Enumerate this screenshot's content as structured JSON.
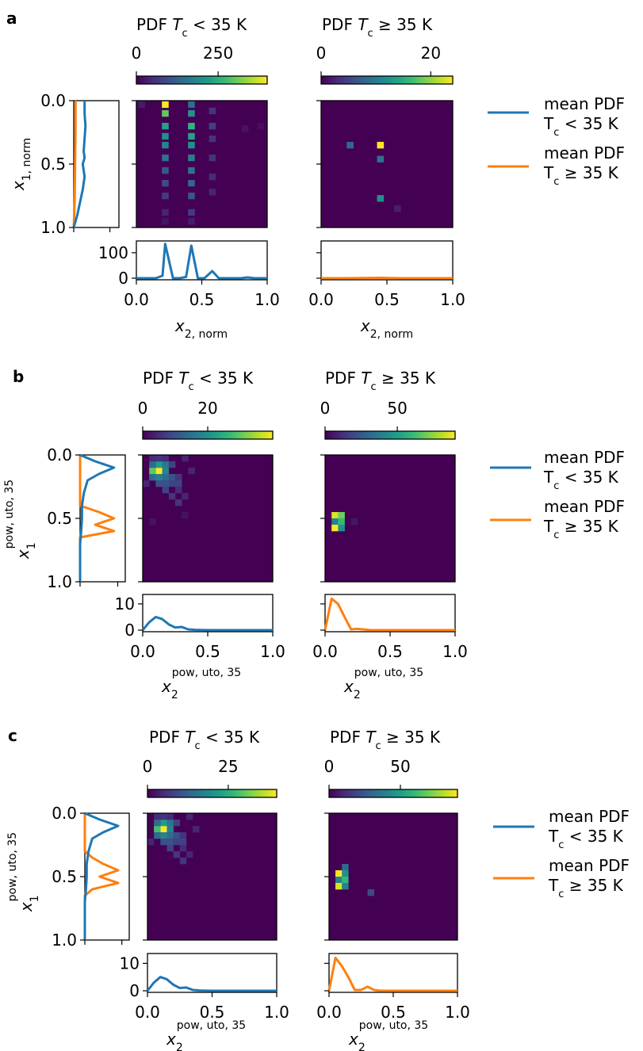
{
  "colors": {
    "below": "#1f77b4",
    "above": "#ff7f0e",
    "viridis": [
      "#440154",
      "#482878",
      "#3e4989",
      "#31688e",
      "#26828e",
      "#1f9e89",
      "#35b779",
      "#6ece58",
      "#b5de2b",
      "#fde725"
    ]
  },
  "legend": {
    "below": [
      "mean PDF",
      "T_c < 35 K"
    ],
    "above": [
      "mean PDF",
      "T_c ≥ 35 K"
    ]
  },
  "chart_data": [
    {
      "panel": "a",
      "type": "heatmap",
      "titles": [
        "PDF Tc < 35 K",
        "PDF Tc ≥ 35 K"
      ],
      "xlabel": "x_2,norm",
      "ylabel": "x_1,norm",
      "x_ticks": [
        "0.0",
        "0.5",
        "1.0"
      ],
      "y_ticks": [
        "0.0",
        "0.5",
        "1.0"
      ],
      "colorbars": [
        {
          "range": [
            0,
            400
          ],
          "ticks": [
            0,
            250
          ],
          "tick_labels": [
            "0",
            "250"
          ]
        },
        {
          "range": [
            0,
            24
          ],
          "ticks": [
            0,
            20
          ],
          "tick_labels": [
            "0",
            "20"
          ]
        }
      ],
      "cells_below": [
        [
          0.04,
          0.03,
          30
        ],
        [
          0.22,
          0.03,
          400
        ],
        [
          0.22,
          0.1,
          300
        ],
        [
          0.22,
          0.2,
          230
        ],
        [
          0.22,
          0.28,
          200
        ],
        [
          0.22,
          0.35,
          180
        ],
        [
          0.22,
          0.45,
          150
        ],
        [
          0.22,
          0.55,
          110
        ],
        [
          0.22,
          0.65,
          90
        ],
        [
          0.22,
          0.75,
          70
        ],
        [
          0.22,
          0.88,
          40
        ],
        [
          0.42,
          0.03,
          140
        ],
        [
          0.42,
          0.1,
          200
        ],
        [
          0.42,
          0.2,
          260
        ],
        [
          0.42,
          0.28,
          230
        ],
        [
          0.42,
          0.35,
          200
        ],
        [
          0.42,
          0.45,
          170
        ],
        [
          0.42,
          0.55,
          150
        ],
        [
          0.42,
          0.65,
          130
        ],
        [
          0.42,
          0.75,
          110
        ],
        [
          0.42,
          0.88,
          70
        ],
        [
          0.58,
          0.08,
          60
        ],
        [
          0.58,
          0.2,
          80
        ],
        [
          0.58,
          0.3,
          60
        ],
        [
          0.58,
          0.45,
          60
        ],
        [
          0.58,
          0.6,
          50
        ],
        [
          0.58,
          0.72,
          40
        ],
        [
          0.83,
          0.22,
          20
        ],
        [
          0.95,
          0.2,
          15
        ],
        [
          0.22,
          0.95,
          20
        ],
        [
          0.42,
          0.95,
          30
        ]
      ],
      "cells_above": [
        [
          0.22,
          0.35,
          8
        ],
        [
          0.45,
          0.35,
          24
        ],
        [
          0.45,
          0.46,
          9
        ],
        [
          0.45,
          0.77,
          12
        ],
        [
          0.58,
          0.85,
          2
        ]
      ],
      "marg_x_below": {
        "x": [
          0,
          0.05,
          0.1,
          0.15,
          0.2,
          0.22,
          0.28,
          0.33,
          0.38,
          0.42,
          0.47,
          0.52,
          0.58,
          0.63,
          0.7,
          0.8,
          0.85,
          0.9,
          1.0
        ],
        "y": [
          0,
          0,
          0,
          0,
          10,
          135,
          0,
          0,
          5,
          128,
          0,
          0,
          28,
          0,
          0,
          0,
          3,
          0,
          0
        ]
      },
      "marg_x_above": {
        "x": [
          0,
          0.2,
          0.45,
          0.6,
          1.0
        ],
        "y": [
          0,
          0,
          1.5,
          0,
          0
        ]
      },
      "marg_x_ylim": [
        0,
        140
      ],
      "marg_x_ticks": [
        0,
        100
      ],
      "marg_y_below": {
        "y": [
          0,
          0.05,
          0.1,
          0.2,
          0.3,
          0.4,
          0.45,
          0.5,
          0.55,
          0.6,
          0.7,
          0.8,
          0.9,
          0.95,
          1.0
        ],
        "x": [
          12,
          12,
          12,
          13,
          12,
          11,
          12,
          10,
          11,
          12,
          10,
          7,
          4,
          2,
          0
        ]
      },
      "marg_y_above": {
        "y": [
          0,
          0.2,
          0.5,
          0.8,
          1.0
        ],
        "x": [
          2,
          2,
          1.5,
          1,
          0
        ]
      },
      "marg_y_xlim": [
        0,
        50
      ],
      "marg_y_xticks": [
        0,
        40
      ]
    },
    {
      "panel": "b",
      "type": "heatmap",
      "titles": [
        "PDF Tc < 35 K",
        "PDF Tc ≥ 35 K"
      ],
      "xlabel": "x_2^pow,uto,35",
      "ylabel": "x_1^pow,uto,35",
      "x_ticks": [
        "0.0",
        "0.5",
        "1.0"
      ],
      "y_ticks": [
        "0.0",
        "0.5",
        "1.0"
      ],
      "colorbars": [
        {
          "range": [
            0,
            40
          ],
          "ticks": [
            0,
            20
          ],
          "tick_labels": [
            "0",
            "20"
          ]
        },
        {
          "range": [
            0,
            90
          ],
          "ticks": [
            0,
            50
          ],
          "tick_labels": [
            "0",
            "50"
          ]
        }
      ],
      "cells_below": [
        [
          0.125,
          0.125,
          40
        ],
        [
          0.075,
          0.125,
          30
        ],
        [
          0.175,
          0.125,
          18
        ],
        [
          0.125,
          0.075,
          22
        ],
        [
          0.175,
          0.075,
          16
        ],
        [
          0.075,
          0.075,
          14
        ],
        [
          0.225,
          0.075,
          8
        ],
        [
          0.075,
          0.175,
          14
        ],
        [
          0.125,
          0.175,
          18
        ],
        [
          0.175,
          0.175,
          14
        ],
        [
          0.225,
          0.175,
          10
        ],
        [
          0.275,
          0.175,
          6
        ],
        [
          0.125,
          0.225,
          10
        ],
        [
          0.175,
          0.225,
          10
        ],
        [
          0.225,
          0.225,
          8
        ],
        [
          0.275,
          0.225,
          8
        ],
        [
          0.175,
          0.275,
          8
        ],
        [
          0.275,
          0.275,
          5
        ],
        [
          0.225,
          0.325,
          6
        ],
        [
          0.325,
          0.325,
          4
        ],
        [
          0.275,
          0.375,
          6
        ],
        [
          0.025,
          0.225,
          4
        ],
        [
          0.375,
          0.125,
          4
        ],
        [
          0.325,
          0.025,
          4
        ],
        [
          0.075,
          0.025,
          5
        ],
        [
          0.125,
          0.025,
          6
        ],
        [
          0.175,
          0.025,
          5
        ],
        [
          0.075,
          0.525,
          2
        ],
        [
          0.325,
          0.475,
          2
        ]
      ],
      "cells_above": [
        [
          0.075,
          0.475,
          85
        ],
        [
          0.125,
          0.475,
          70
        ],
        [
          0.075,
          0.525,
          40
        ],
        [
          0.125,
          0.525,
          60
        ],
        [
          0.075,
          0.575,
          90
        ],
        [
          0.125,
          0.575,
          45
        ],
        [
          0.225,
          0.525,
          5
        ]
      ],
      "marg_x_below": {
        "x": [
          0,
          0.05,
          0.1,
          0.15,
          0.2,
          0.25,
          0.3,
          0.35,
          0.4,
          0.5,
          0.6,
          0.7,
          0.8,
          0.9,
          1.0
        ],
        "y": [
          0,
          3,
          5,
          4.2,
          2.2,
          1,
          1.2,
          0.3,
          0.1,
          0,
          0,
          0,
          0,
          0,
          0
        ]
      },
      "marg_x_above": {
        "x": [
          0,
          0.05,
          0.1,
          0.15,
          0.2,
          0.25,
          0.35,
          0.5,
          0.6,
          0.8,
          1.0
        ],
        "y": [
          0,
          12,
          10,
          5,
          0.3,
          0.5,
          0,
          0,
          0,
          0,
          0
        ]
      },
      "marg_x_ylim": [
        0,
        13
      ],
      "marg_x_ticks": [
        0,
        10
      ],
      "marg_y_below": {
        "y": [
          0,
          0.05,
          0.1,
          0.15,
          0.2,
          0.3,
          0.4,
          0.5,
          0.6,
          0.7,
          0.8,
          0.9,
          1.0
        ],
        "x": [
          0,
          4,
          9,
          5,
          2,
          1,
          0.5,
          0.5,
          0.3,
          0,
          0,
          0,
          0
        ]
      },
      "marg_y_above": {
        "y": [
          0,
          0.3,
          0.4,
          0.45,
          0.5,
          0.55,
          0.6,
          0.65,
          0.7,
          1.0
        ],
        "x": [
          0,
          0,
          0,
          5,
          9,
          4,
          9,
          0,
          0,
          0
        ]
      },
      "marg_y_xlim": [
        0,
        12
      ],
      "marg_y_xticks": [
        0,
        10
      ]
    },
    {
      "panel": "c",
      "type": "heatmap",
      "titles": [
        "PDF Tc < 35 K",
        "PDF Tc ≥ 35 K"
      ],
      "xlabel": "x_2^pow,uto,35",
      "ylabel": "x_1^pow,uto,35",
      "x_ticks": [
        "0.0",
        "0.5",
        "1.0"
      ],
      "y_ticks": [
        "0.0",
        "0.5",
        "1.0"
      ],
      "colorbars": [
        {
          "range": [
            0,
            40
          ],
          "ticks": [
            0,
            25
          ],
          "tick_labels": [
            "0",
            "25"
          ]
        },
        {
          "range": [
            0,
            90
          ],
          "ticks": [
            0,
            50
          ],
          "tick_labels": [
            "0",
            "50"
          ]
        }
      ],
      "cells_below": [
        [
          0.125,
          0.125,
          40
        ],
        [
          0.075,
          0.125,
          28
        ],
        [
          0.175,
          0.125,
          18
        ],
        [
          0.125,
          0.075,
          22
        ],
        [
          0.175,
          0.075,
          16
        ],
        [
          0.075,
          0.075,
          14
        ],
        [
          0.225,
          0.075,
          8
        ],
        [
          0.075,
          0.175,
          14
        ],
        [
          0.125,
          0.175,
          18
        ],
        [
          0.175,
          0.175,
          14
        ],
        [
          0.225,
          0.175,
          10
        ],
        [
          0.275,
          0.175,
          6
        ],
        [
          0.125,
          0.225,
          10
        ],
        [
          0.175,
          0.225,
          10
        ],
        [
          0.225,
          0.225,
          8
        ],
        [
          0.275,
          0.225,
          8
        ],
        [
          0.175,
          0.275,
          8
        ],
        [
          0.275,
          0.275,
          5
        ],
        [
          0.225,
          0.325,
          6
        ],
        [
          0.325,
          0.325,
          4
        ],
        [
          0.275,
          0.375,
          6
        ],
        [
          0.025,
          0.225,
          4
        ],
        [
          0.375,
          0.125,
          4
        ],
        [
          0.325,
          0.025,
          4
        ],
        [
          0.075,
          0.025,
          5
        ],
        [
          0.125,
          0.025,
          6
        ],
        [
          0.175,
          0.025,
          5
        ]
      ],
      "cells_above": [
        [
          0.125,
          0.425,
          30
        ],
        [
          0.075,
          0.475,
          90
        ],
        [
          0.125,
          0.475,
          45
        ],
        [
          0.075,
          0.525,
          40
        ],
        [
          0.125,
          0.525,
          60
        ],
        [
          0.075,
          0.575,
          85
        ],
        [
          0.125,
          0.575,
          40
        ],
        [
          0.325,
          0.625,
          20
        ]
      ],
      "marg_x_below": {
        "x": [
          0,
          0.05,
          0.1,
          0.15,
          0.2,
          0.25,
          0.3,
          0.35,
          0.4,
          0.5,
          0.6,
          0.7,
          0.8,
          0.9,
          1.0
        ],
        "y": [
          0,
          3,
          5,
          4.2,
          2.2,
          1,
          1.2,
          0.3,
          0.1,
          0,
          0,
          0,
          0,
          0,
          0
        ]
      },
      "marg_x_above": {
        "x": [
          0,
          0.05,
          0.1,
          0.15,
          0.2,
          0.25,
          0.3,
          0.35,
          0.4,
          0.5,
          0.6,
          0.8,
          1.0
        ],
        "y": [
          0,
          12,
          9,
          5,
          0.3,
          0.3,
          1.5,
          0.3,
          0,
          0,
          0,
          0,
          0
        ]
      },
      "marg_x_ylim": [
        0,
        13
      ],
      "marg_x_ticks": [
        0,
        10
      ],
      "marg_y_below": {
        "y": [
          0,
          0.05,
          0.1,
          0.15,
          0.2,
          0.3,
          0.4,
          0.5,
          0.6,
          0.7,
          0.8,
          0.9,
          1.0
        ],
        "x": [
          0,
          4,
          9,
          5,
          2,
          1,
          0.5,
          0.5,
          0.3,
          0,
          0,
          0,
          0
        ]
      },
      "marg_y_above": {
        "y": [
          0,
          0.3,
          0.35,
          0.4,
          0.45,
          0.5,
          0.55,
          0.6,
          0.65,
          0.7,
          1.0
        ],
        "x": [
          0,
          0,
          2,
          5,
          9,
          4,
          9,
          2,
          0,
          0,
          0
        ]
      },
      "marg_y_xlim": [
        0,
        12
      ],
      "marg_y_xticks": [
        0,
        10
      ]
    }
  ]
}
